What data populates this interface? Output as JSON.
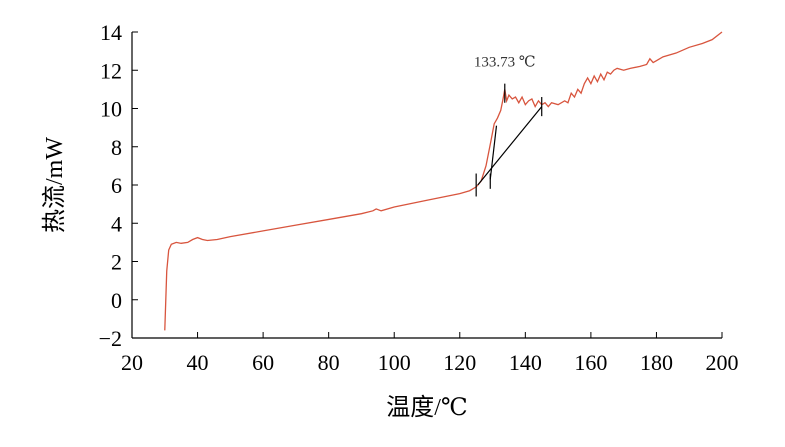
{
  "chart_data": {
    "type": "line",
    "x_label": "温度/℃",
    "y_label": "热流/mW",
    "xlim": [
      20,
      200
    ],
    "ylim": [
      -2,
      14
    ],
    "xticks": [
      20,
      40,
      60,
      80,
      100,
      120,
      140,
      160,
      180,
      200
    ],
    "yticks": [
      {
        "value": -2,
        "label": "−2"
      },
      0,
      2,
      4,
      6,
      8,
      10,
      12,
      14
    ],
    "series": [
      {
        "color": "#d8553e",
        "x": [
          30,
          30.6,
          31.2,
          32,
          33.5,
          35,
          37,
          38.5,
          40,
          41.5,
          43,
          46,
          50,
          60,
          70,
          80,
          90,
          93.5,
          94.5,
          96,
          100,
          110,
          120,
          123,
          125,
          126.5,
          128,
          129.5,
          130.5,
          131.5,
          132.5,
          133.2,
          133.73,
          134.3,
          135,
          136,
          137,
          138,
          139,
          140,
          141,
          142,
          143,
          144,
          145,
          146,
          147,
          148,
          150,
          152,
          153,
          154,
          155,
          156,
          157,
          158,
          159,
          160,
          161,
          162,
          163,
          164,
          165,
          166,
          167,
          168,
          170,
          172,
          175,
          177,
          178,
          179,
          180,
          182,
          186,
          190,
          194,
          197,
          200
        ],
        "values": [
          -1.6,
          1.5,
          2.6,
          2.9,
          3.0,
          2.95,
          3.0,
          3.15,
          3.25,
          3.15,
          3.1,
          3.15,
          3.3,
          3.6,
          3.9,
          4.2,
          4.5,
          4.65,
          4.75,
          4.65,
          4.85,
          5.2,
          5.55,
          5.7,
          5.9,
          6.2,
          7.0,
          8.3,
          9.2,
          9.5,
          9.9,
          10.5,
          11.0,
          10.4,
          10.7,
          10.5,
          10.6,
          10.3,
          10.6,
          10.2,
          10.4,
          10.5,
          10.1,
          10.4,
          10.2,
          10.3,
          10.1,
          10.3,
          10.2,
          10.4,
          10.3,
          10.8,
          10.6,
          11.0,
          10.8,
          11.3,
          11.6,
          11.3,
          11.7,
          11.4,
          11.8,
          11.5,
          11.9,
          11.8,
          12.0,
          12.1,
          12.0,
          12.1,
          12.2,
          12.3,
          12.6,
          12.4,
          12.5,
          12.7,
          12.9,
          13.2,
          13.4,
          13.6,
          14.0
        ]
      }
    ],
    "tangent_lines": [
      [
        125.5,
        6.0,
        145,
        10.1
      ],
      [
        129.3,
        6.3,
        131.2,
        9.1
      ]
    ],
    "markers": [
      [
        125,
        5.4,
        125,
        6.6
      ],
      [
        129.3,
        5.8,
        129.3,
        6.6
      ],
      [
        133.73,
        10.3,
        133.73,
        11.3
      ],
      [
        145,
        9.6,
        145,
        10.6
      ]
    ],
    "annotation": {
      "text": "133.73 ℃",
      "x": 133.73,
      "y": 12.5
    }
  }
}
